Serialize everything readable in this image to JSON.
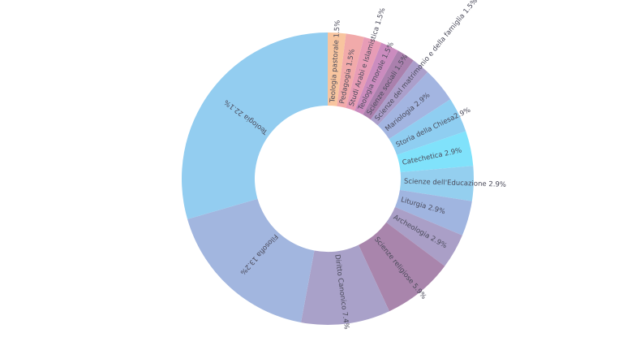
{
  "chart_data": {
    "type": "pie",
    "donut": true,
    "title": "",
    "legend": "none",
    "slices": [
      {
        "label": "Teologia pastorale",
        "value": 1.5,
        "text": "Teologia pastorale 1.5%",
        "color": "#f8c59f"
      },
      {
        "label": "Pedagogia",
        "value": 1.5,
        "text": "Pedagogia 1.5%",
        "color": "#f1aaaa"
      },
      {
        "label": "Studi Arabi e Islamistica",
        "value": 1.5,
        "text": "Studi Arabi e Islamistica 1.5%",
        "color": "#e79cb6"
      },
      {
        "label": "Teologia morale",
        "value": 1.5,
        "text": "Teologia morale 1.5%",
        "color": "#cb8cbf"
      },
      {
        "label": "Scienze sociali",
        "value": 1.5,
        "text": "Scienze sociali 1.5%",
        "color": "#aa80ad"
      },
      {
        "label": "Scienze del matrimonio e della famiglia",
        "value": 1.5,
        "text": "Scienze del matrimonio e della famiglia 1.5%",
        "color": "#ab9fcb"
      },
      {
        "label": "Mariologia",
        "value": 2.9,
        "text": "Mariologia 2.9%",
        "color": "#a3b5e1"
      },
      {
        "label": "Storia della Chiesa",
        "value": 2.9,
        "text": "Storia della Chiesa2.9%",
        "color": "#8fcef1"
      },
      {
        "label": "Catechetica",
        "value": 2.9,
        "text": "Catechetica 2.9%",
        "color": "#80e2fb"
      },
      {
        "label": "Scienze dell'Educazione",
        "value": 2.9,
        "text": "Scienze dell'Educazione 2.9%",
        "color": "#94cfef"
      },
      {
        "label": "Liturgia",
        "value": 2.9,
        "text": "Liturgia 2.9%",
        "color": "#a0b5e0"
      },
      {
        "label": "Archeologia",
        "value": 2.9,
        "text": "Archeologia 2.9%",
        "color": "#aa9fc7"
      },
      {
        "label": "Scienze religiose",
        "value": 5.9,
        "text": "Scienze religiose 5.9%",
        "color": "#a985ac"
      },
      {
        "label": "Diritto Canonico",
        "value": 7.4,
        "text": "Diritto Canonico 7.4%",
        "color": "#a9a1c9"
      },
      {
        "label": "Filosofia",
        "value": 13.2,
        "text": "Filosofia 13.2%",
        "color": "#a2b6df"
      },
      {
        "label": "Teologia",
        "value": 22.1,
        "text": "Teologia 22.1%",
        "color": "#93cdf0"
      }
    ]
  }
}
